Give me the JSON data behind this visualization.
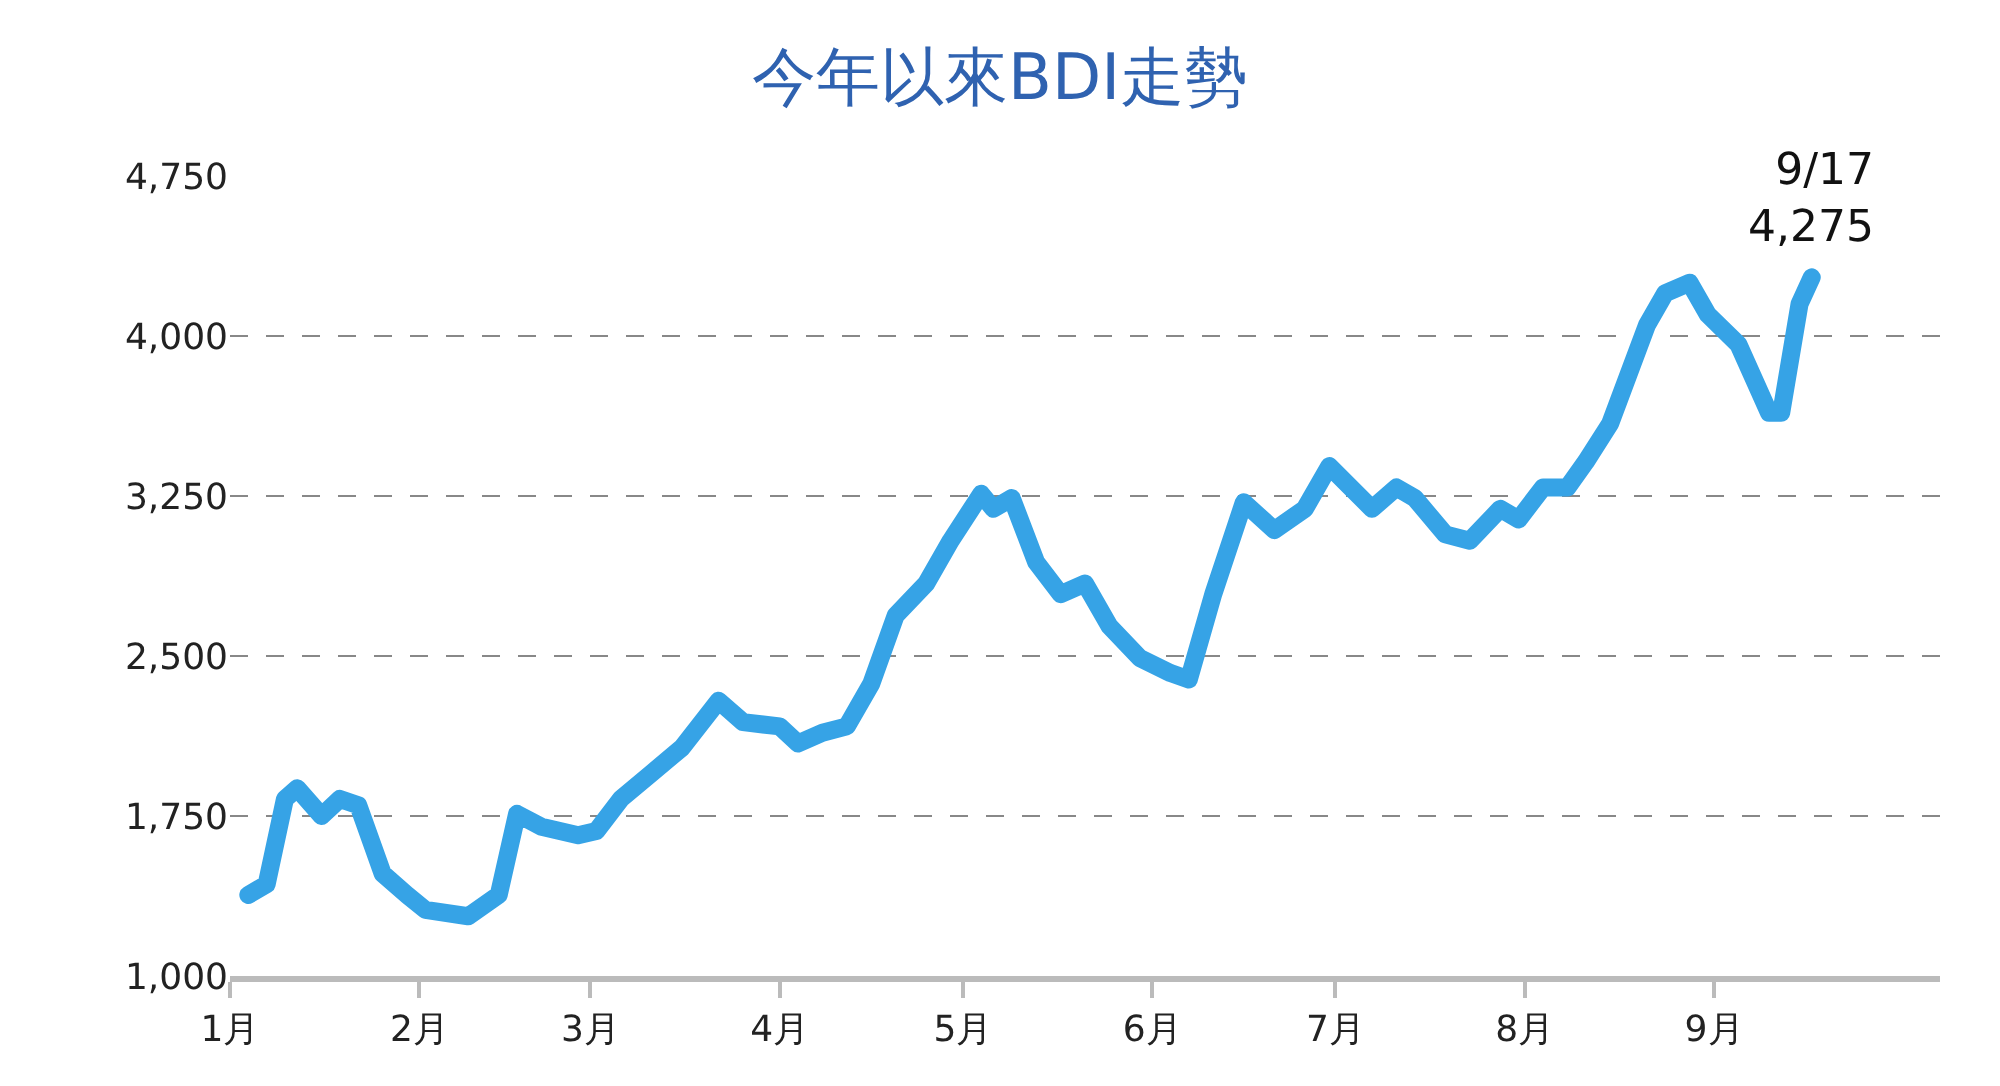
{
  "chart_data": {
    "type": "line",
    "title": "今年以來BDI走勢",
    "x": [
      "--01-04",
      "--01-07",
      "--01-10",
      "--01-12",
      "--01-16",
      "--01-19",
      "--01-22",
      "--01-26",
      "--01-30",
      "--02-02",
      "--02-09",
      "--02-14",
      "--02-17",
      "--02-21",
      "--02-27",
      "--03-02",
      "--03-06",
      "--03-11",
      "--03-16",
      "--03-22",
      "--03-26",
      "--04-01",
      "--04-04",
      "--04-08",
      "--04-12",
      "--04-16",
      "--04-20",
      "--04-25",
      "--04-29",
      "--05-04",
      "--05-06",
      "--05-09",
      "--05-13",
      "--05-17",
      "--05-21",
      "--05-25",
      "--05-30",
      "--06-04",
      "--06-07",
      "--06-11",
      "--06-16",
      "--06-21",
      "--06-26",
      "--06-30",
      "--07-07",
      "--07-11",
      "--07-14",
      "--07-19",
      "--07-23",
      "--07-28",
      "--07-31",
      "--08-04",
      "--08-08",
      "--08-11",
      "--08-15",
      "--08-21",
      "--08-24",
      "--08-28",
      "--08-31",
      "--09-05",
      "--09-10",
      "--09-12",
      "--09-15",
      "--09-17"
    ],
    "series": [
      {
        "color": "#36a3e6",
        "values": [
          1380,
          1430,
          1830,
          1880,
          1750,
          1830,
          1800,
          1480,
          1380,
          1310,
          1280,
          1380,
          1760,
          1700,
          1660,
          1680,
          1830,
          1950,
          2070,
          2290,
          2190,
          2170,
          2090,
          2140,
          2170,
          2370,
          2690,
          2840,
          3040,
          3260,
          3190,
          3240,
          2940,
          2790,
          2840,
          2640,
          2490,
          2420,
          2390,
          2790,
          3220,
          3090,
          3190,
          3390,
          3190,
          3290,
          3240,
          3070,
          3040,
          3190,
          3140,
          3290,
          3290,
          3410,
          3590,
          4050,
          4200,
          4250,
          4100,
          3960,
          3640,
          3640,
          4150,
          4275
        ]
      }
    ],
    "xlim": [
      "--01-01",
      "--10-08"
    ],
    "xticks": [
      {
        "value": "--01-01",
        "label": "1月"
      },
      {
        "value": "--02-01",
        "label": "2月"
      },
      {
        "value": "--03-01",
        "label": "3月"
      },
      {
        "value": "--04-01",
        "label": "4月"
      },
      {
        "value": "--05-01",
        "label": "5月"
      },
      {
        "value": "--06-01",
        "label": "6月"
      },
      {
        "value": "--07-01",
        "label": "7月"
      },
      {
        "value": "--08-01",
        "label": "8月"
      },
      {
        "value": "--09-01",
        "label": "9月"
      }
    ],
    "ylim": [
      1000,
      4750
    ],
    "yticks": [
      {
        "value": 1000,
        "label": "1,000"
      },
      {
        "value": 1750,
        "label": "1,750"
      },
      {
        "value": 2500,
        "label": "2,500"
      },
      {
        "value": 3250,
        "label": "3,250"
      },
      {
        "value": 4000,
        "label": "4,000"
      },
      {
        "value": 4750,
        "label": "4,750"
      }
    ],
    "grid": "y",
    "line_style": "solid",
    "annotations": [
      {
        "text": "9/17\n4,275",
        "x": "--09-17",
        "y": 4275
      }
    ]
  }
}
